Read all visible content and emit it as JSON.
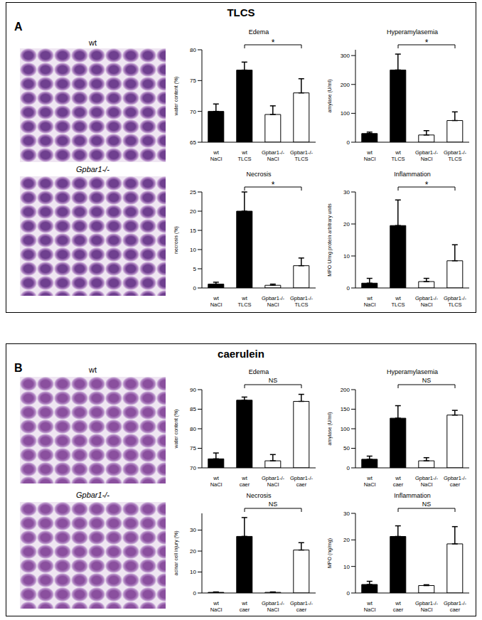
{
  "panels": [
    {
      "letter": "A",
      "title": "TLCS",
      "image_labels": [
        "wt",
        "Gpbar1-/-"
      ]
    },
    {
      "letter": "B",
      "title": "caerulein",
      "image_labels": [
        "wt",
        "Gpbar1-/-"
      ]
    }
  ],
  "chart_data": [
    {
      "type": "bar",
      "title": "Edema",
      "y_label": "water content (%)",
      "categories": [
        "wt NaCl",
        "wt TLCS",
        "Gpbar1-/- NaCl",
        "Gpbar1-/- TLCS"
      ],
      "values": [
        70,
        76.7,
        69.5,
        73
      ],
      "errors": [
        1.2,
        1.3,
        1.4,
        2.3
      ],
      "colors": [
        "#000000",
        "#000000",
        "#ffffff",
        "#ffffff"
      ],
      "ylim": [
        65,
        80
      ],
      "yticks": [
        65,
        70,
        75,
        80
      ],
      "annotation": "*"
    },
    {
      "type": "bar",
      "title": "Hyperamylasemia",
      "y_label": "amylase (U/ml)",
      "categories": [
        "wt NaCl",
        "wt TLCS",
        "Gpbar1-/- NaCl",
        "Gpbar1-/- TLCS"
      ],
      "values": [
        30,
        250,
        25,
        75
      ],
      "errors": [
        5,
        55,
        15,
        30
      ],
      "colors": [
        "#000000",
        "#000000",
        "#ffffff",
        "#ffffff"
      ],
      "ylim": [
        0,
        320
      ],
      "yticks": [
        0,
        100,
        200,
        300
      ],
      "annotation": "*"
    },
    {
      "type": "bar",
      "title": "Necrosis",
      "y_label": "necrosis (%)",
      "categories": [
        "wt NaCl",
        "wt TLCS",
        "Gpbar1-/- NaCl",
        "Gpbar1-/- TLCS"
      ],
      "values": [
        1,
        20,
        0.7,
        5.8
      ],
      "errors": [
        0.5,
        5,
        0.3,
        2
      ],
      "colors": [
        "#000000",
        "#000000",
        "#ffffff",
        "#ffffff"
      ],
      "ylim": [
        0,
        25
      ],
      "yticks": [
        0,
        5,
        10,
        15,
        20,
        25
      ],
      "annotation": "*"
    },
    {
      "type": "bar",
      "title": "Inflammation",
      "y_label": "MPO U/mg protein arbitrary units",
      "categories": [
        "wt NaCl",
        "wt TLCS",
        "Gpbar1-/- NaCl",
        "Gpbar1-/- TLCS"
      ],
      "values": [
        1.5,
        19.5,
        2,
        8.5
      ],
      "errors": [
        1.5,
        8,
        1,
        5
      ],
      "colors": [
        "#000000",
        "#000000",
        "#ffffff",
        "#ffffff"
      ],
      "ylim": [
        0,
        30
      ],
      "yticks": [
        0,
        10,
        20,
        30
      ],
      "annotation": "*"
    },
    {
      "type": "bar",
      "title": "Edema",
      "y_label": "water content (%)",
      "categories": [
        "wt NaCl",
        "wt caer",
        "Gpbar1-/- NaCl",
        "Gpbar1-/- caer"
      ],
      "values": [
        72.3,
        87.3,
        71.8,
        87
      ],
      "errors": [
        1.5,
        0.8,
        1.6,
        1.8
      ],
      "colors": [
        "#000000",
        "#000000",
        "#ffffff",
        "#ffffff"
      ],
      "ylim": [
        70,
        90
      ],
      "yticks": [
        70,
        75,
        80,
        85,
        90
      ],
      "annotation": "NS"
    },
    {
      "type": "bar",
      "title": "Hyperamylasemia",
      "y_label": "amylase (U/ml)",
      "categories": [
        "wt NaCl",
        "wt caer",
        "Gpbar1-/- NaCl",
        "Gpbar1-/- caer"
      ],
      "values": [
        22,
        127,
        18,
        135
      ],
      "errors": [
        8,
        32,
        8,
        12
      ],
      "colors": [
        "#000000",
        "#000000",
        "#ffffff",
        "#ffffff"
      ],
      "ylim": [
        0,
        200
      ],
      "yticks": [
        0,
        50,
        100,
        150,
        200
      ],
      "annotation": "NS"
    },
    {
      "type": "bar",
      "title": "Necrosis",
      "y_label": "acinar cell injury (%)",
      "categories": [
        "wt NaCl",
        "wt caer",
        "Gpbar1-/- NaCl",
        "Gpbar1-/- caer"
      ],
      "values": [
        0.3,
        27,
        0.3,
        20.5
      ],
      "errors": [
        0.2,
        9,
        0.2,
        3.5
      ],
      "colors": [
        "#000000",
        "#000000",
        "#ffffff",
        "#ffffff"
      ],
      "ylim": [
        0,
        38
      ],
      "yticks": [
        0,
        10,
        20,
        30
      ],
      "annotation": "NS"
    },
    {
      "type": "bar",
      "title": "Inflammation",
      "y_label": "MPO (ng/mg)",
      "categories": [
        "wt NaCl",
        "wt caer",
        "Gpbar1-/- NaCl",
        "Gpbar1-/- caer"
      ],
      "values": [
        3.2,
        21.3,
        2.8,
        18.5
      ],
      "errors": [
        1.2,
        4,
        0.3,
        6.5
      ],
      "colors": [
        "#000000",
        "#000000",
        "#ffffff",
        "#ffffff"
      ],
      "ylim": [
        0,
        30
      ],
      "yticks": [
        0,
        10,
        20,
        30
      ],
      "annotation": "NS"
    }
  ]
}
